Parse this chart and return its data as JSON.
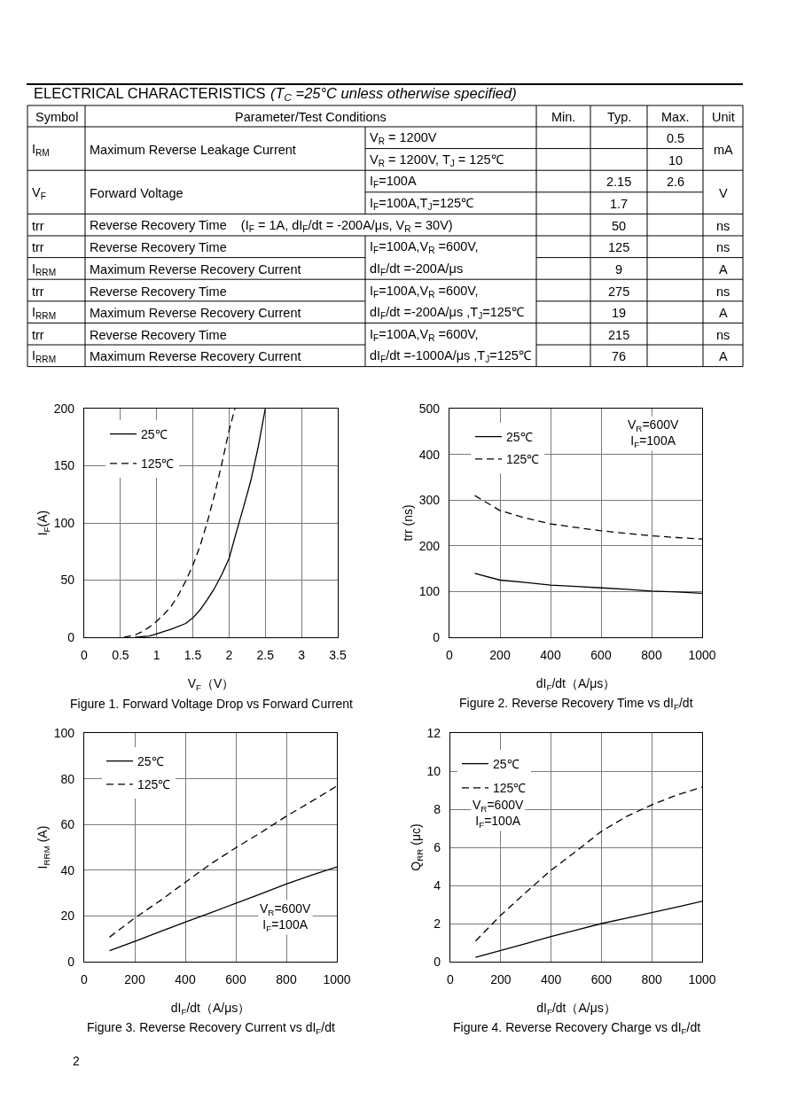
{
  "chart_data": [
    {
      "type": "other",
      "title": "ELECTRICAL CHARACTERISTICS",
      "subtitle": "(T$_{C}$ =25°C unless otherwise specified)",
      "categories": [
        "Symbol",
        "Parameter/Test Conditions",
        null,
        "Min.",
        "Typ.",
        "Max.",
        "Unit"
      ],
      "cells": [
        [
          "I$_{RM}$",
          "Maximum Reverse Leakage Current",
          "V$_{R}$ = 1200V",
          null,
          null,
          "0.5",
          "mA"
        ],
        [
          null,
          null,
          "V$_{R}$ = 1200V, T$_{J}$ = 125℃",
          null,
          null,
          "10",
          null
        ],
        [
          "V$_{F}$",
          "Forward Voltage",
          "I$_{F}$=100A",
          null,
          "2.15",
          "2.6",
          "V"
        ],
        [
          null,
          null,
          "I$_{F}$=100A,T$_{J}$=125℃",
          null,
          "1.7",
          null,
          null
        ],
        [
          "trr",
          "Reverse Recovery Time    (I$_{F}$ = 1A, dI$_{F}$/dt = -200A/μs, V$_{R}$ = 30V)",
          null,
          null,
          "50",
          null,
          "ns"
        ],
        [
          "trr",
          "Reverse Recovery Time",
          "I$_{F}$=100A,V$_{R}$ =600V,",
          null,
          "125",
          null,
          "ns"
        ],
        [
          "I$_{RRM}$",
          "Maximum Reverse Recovery Current",
          "dI$_{F}$/dt =-200A/μs",
          null,
          "9",
          null,
          "A"
        ],
        [
          "trr",
          "Reverse Recovery Time",
          "I$_{F}$=100A,V$_{R}$ =600V,",
          null,
          "275",
          null,
          "ns"
        ],
        [
          "I$_{RRM}$",
          "Maximum Reverse Recovery Current",
          "dI$_{F}$/dt =-200A/μs ,T$_{J}$=125℃",
          null,
          "19",
          null,
          "A"
        ],
        [
          "trr",
          "Reverse Recovery Time",
          "I$_{F}$=100A,V$_{R}$ =600V,",
          null,
          "215",
          null,
          "ns"
        ],
        [
          "I$_{RRM}$",
          "Maximum Reverse Recovery Current",
          "dI$_{F}$/dt =-1000A/μs ,T$_{J}$=125℃",
          null,
          "76",
          null,
          "A"
        ]
      ],
      "annotations": [
        "2"
      ]
    },
    {
      "type": "line",
      "title": "Figure 1. Forward Voltage Drop vs Forward Current",
      "xlabel": "V$_{F}$（V）",
      "ylabel": "I$_{F}$(A)",
      "xlim": [
        0,
        3.5
      ],
      "ylim": [
        0,
        200
      ],
      "xticks": [
        0,
        0.5,
        1,
        1.5,
        2,
        2.5,
        3,
        3.5
      ],
      "yticks": [
        0,
        50,
        100,
        150,
        200
      ],
      "grid": true,
      "legend": "top left",
      "series": [
        {
          "name": "25℃",
          "color": "#000000",
          "line_style": "solid",
          "x": [
            0.7,
            0.9,
            1.0,
            1.2,
            1.4,
            1.5,
            1.6,
            1.7,
            1.8,
            1.9,
            2.0,
            2.1,
            2.2,
            2.3,
            2.4,
            2.5
          ],
          "values": [
            0,
            1,
            3,
            7,
            12,
            17,
            24,
            33,
            43,
            55,
            69,
            92,
            114,
            137,
            166,
            200
          ]
        },
        {
          "name": "125℃",
          "color": "#000000",
          "line_style": "dashed",
          "x": [
            0.55,
            0.7,
            0.8,
            0.9,
            1.0,
            1.1,
            1.2,
            1.3,
            1.4,
            1.5,
            1.6,
            1.7,
            1.8,
            1.9,
            2.0,
            2.08
          ],
          "values": [
            0,
            2,
            5,
            9,
            14,
            20,
            27,
            37,
            49,
            63,
            80,
            101,
            125,
            152,
            181,
            200
          ]
        }
      ]
    },
    {
      "type": "line",
      "title": "Figure 2. Reverse Recovery Time vs dI$_{F}$/dt",
      "xlabel": "dI$_{F}$/dt（A/μs）",
      "ylabel": "trr (ns)",
      "xlim": [
        0,
        1000
      ],
      "ylim": [
        0,
        500
      ],
      "xticks": [
        0,
        200,
        400,
        600,
        800,
        1000
      ],
      "yticks": [
        0,
        100,
        200,
        300,
        400,
        500
      ],
      "grid": true,
      "legend": "top left",
      "annotations": [
        "V$_{R}$=600V\nI$_{F}$=100A"
      ],
      "x": [
        100,
        200,
        300,
        400,
        500,
        600,
        700,
        800,
        900,
        1000
      ],
      "series": [
        {
          "name": "25℃",
          "color": "#000000",
          "line_style": "solid",
          "values": [
            140,
            125,
            120,
            114,
            111,
            108,
            105,
            101,
            99,
            96
          ]
        },
        {
          "name": "125℃",
          "color": "#000000",
          "line_style": "dashed",
          "values": [
            310,
            277,
            261,
            248,
            240,
            233,
            227,
            222,
            218,
            215
          ]
        }
      ]
    },
    {
      "type": "line",
      "title": "Figure 3. Reverse Recovery Current vs dI$_{F}$/dt",
      "xlabel": "dI$_{F}$/dt（A/μs）",
      "ylabel": "I$_{RRM}$ (A)",
      "xlim": [
        0,
        1000
      ],
      "ylim": [
        0,
        100
      ],
      "xticks": [
        0,
        200,
        400,
        600,
        800,
        1000
      ],
      "yticks": [
        0,
        20,
        40,
        60,
        80,
        100
      ],
      "grid": true,
      "legend": "top left",
      "annotations": [
        "V$_{R}$=600V\nI$_{F}$=100A"
      ],
      "x": [
        100,
        200,
        300,
        400,
        500,
        600,
        700,
        800,
        900,
        1000
      ],
      "series": [
        {
          "name": "25℃",
          "color": "#000000",
          "line_style": "solid",
          "values": [
            4.8,
            8.9,
            13.1,
            17.3,
            21.4,
            25.5,
            29.7,
            34.0,
            37.8,
            41.4
          ]
        },
        {
          "name": "125℃",
          "color": "#000000",
          "line_style": "dashed",
          "values": [
            10.7,
            19.1,
            26.6,
            34.7,
            42.7,
            49.8,
            56.5,
            63.6,
            70.1,
            76.8
          ]
        }
      ]
    },
    {
      "type": "line",
      "title": "Figure 4. Reverse Recovery Charge vs dI$_{F}$/dt",
      "xlabel": "dI$_{F}$/dt（A/μs）",
      "ylabel": "Q$_{RR}$ (μc)",
      "xlim": [
        0,
        1000
      ],
      "ylim": [
        0,
        12
      ],
      "xticks": [
        0,
        200,
        400,
        600,
        800,
        1000
      ],
      "yticks": [
        0,
        2,
        4,
        6,
        8,
        10,
        12
      ],
      "grid": true,
      "legend": "top left",
      "annotations": [
        "V$_{R}$=600V\nI$_{F}$=100A"
      ],
      "x": [
        100,
        200,
        300,
        400,
        500,
        600,
        700,
        800,
        900,
        1000
      ],
      "series": [
        {
          "name": "25℃",
          "color": "#000000",
          "line_style": "solid",
          "values": [
            0.23,
            0.59,
            0.95,
            1.32,
            1.66,
            2.0,
            2.29,
            2.58,
            2.87,
            3.17
          ]
        },
        {
          "name": "125℃",
          "color": "#000000",
          "line_style": "dashed",
          "values": [
            1.08,
            2.43,
            3.64,
            4.8,
            5.8,
            6.84,
            7.62,
            8.23,
            8.75,
            9.16
          ]
        }
      ]
    }
  ]
}
